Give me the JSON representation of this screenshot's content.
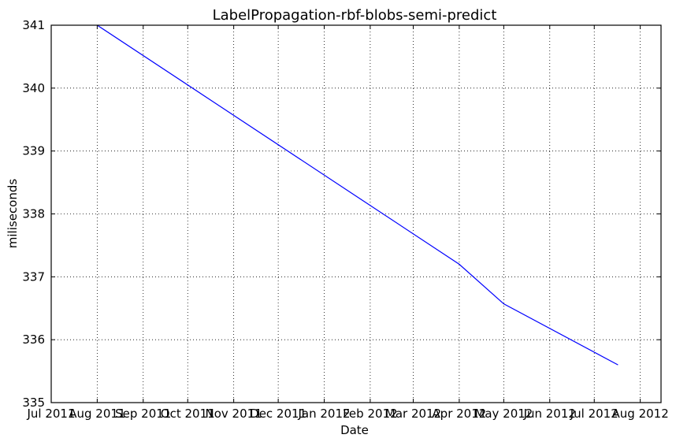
{
  "chart_data": {
    "type": "line",
    "title": "LabelPropagation-rbf-blobs-semi-predict",
    "xlabel": "Date",
    "ylabel": "miliseconds",
    "xlim": [
      "2011-07-01",
      "2012-08-15"
    ],
    "ylim": [
      335,
      341
    ],
    "x_ticks": [
      "2011-07-01",
      "2011-08-01",
      "2011-09-01",
      "2011-10-01",
      "2011-11-01",
      "2011-12-01",
      "2012-01-01",
      "2012-02-01",
      "2012-03-01",
      "2012-04-01",
      "2012-05-01",
      "2012-06-01",
      "2012-07-01",
      "2012-08-01"
    ],
    "x_tick_labels": [
      "Jul 2011",
      "Aug 2011",
      "Sep 2011",
      "Oct 2011",
      "Nov 2011",
      "Dec 2011",
      "Jan 2012",
      "Feb 2012",
      "Mar 2012",
      "Apr 2012",
      "May 2012",
      "Jun 2012",
      "Jul 2012",
      "Aug 2012"
    ],
    "y_ticks": [
      335,
      336,
      337,
      338,
      339,
      340,
      341
    ],
    "y_tick_labels": [
      "335",
      "336",
      "337",
      "338",
      "339",
      "340",
      "341"
    ],
    "grid": true,
    "series": [
      {
        "color": "#0000ff",
        "x": [
          "2011-08-01",
          "2012-04-01",
          "2012-05-01",
          "2012-07-17"
        ],
        "y": [
          341.0,
          337.2,
          336.57,
          335.6
        ]
      }
    ]
  }
}
